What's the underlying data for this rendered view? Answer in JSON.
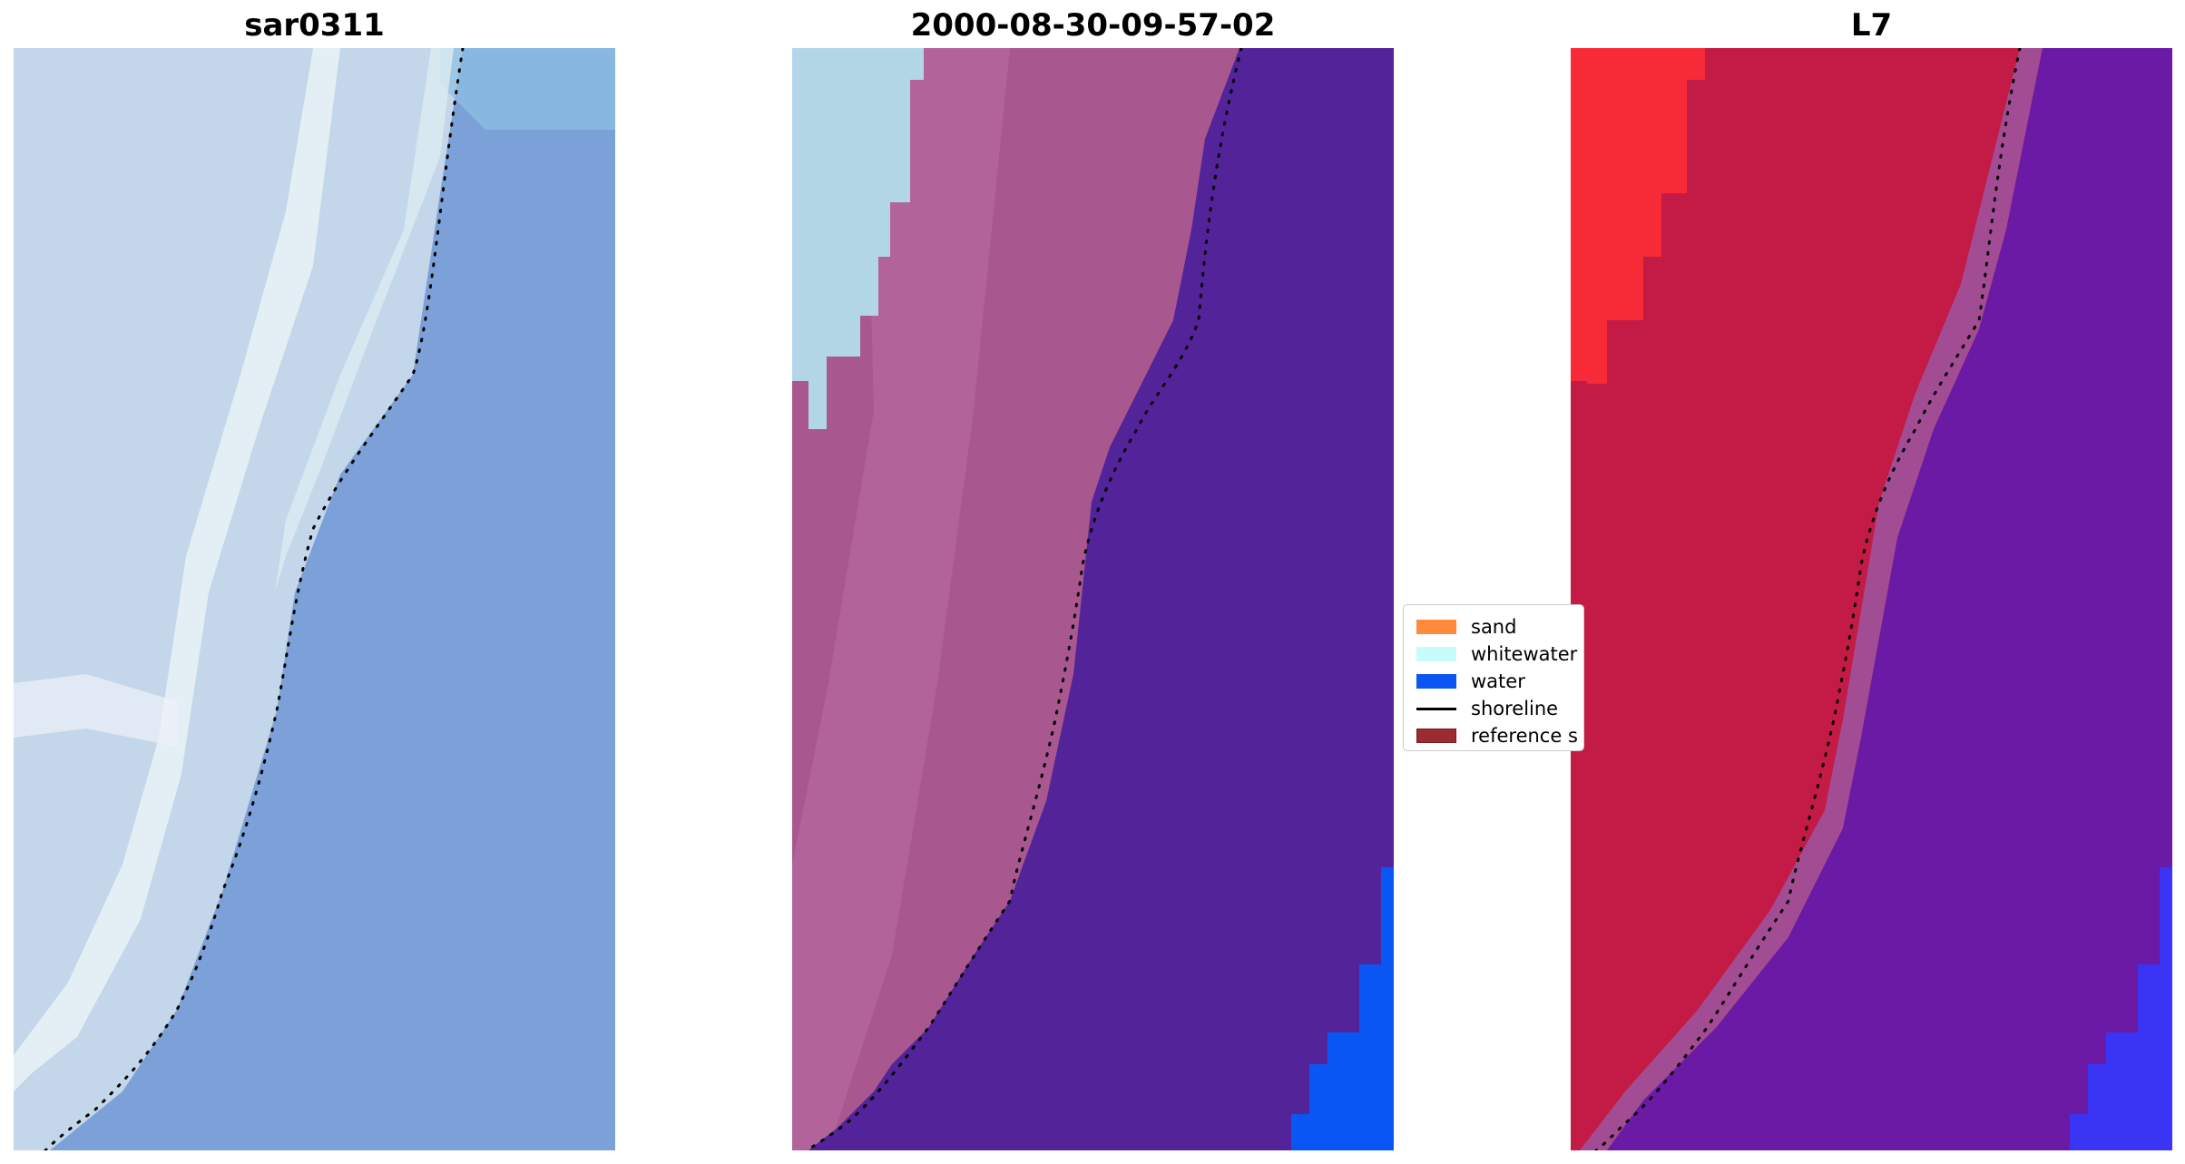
{
  "panels": [
    {
      "title": "sar0311"
    },
    {
      "title": "2000-08-30-09-57-02"
    },
    {
      "title": "L7"
    }
  ],
  "legend": {
    "items": [
      {
        "label": "sand",
        "kind": "patch",
        "color": "#ff8a3c"
      },
      {
        "label": "whitewater",
        "kind": "patch",
        "color": "#c8fbfb"
      },
      {
        "label": "water",
        "kind": "patch",
        "color": "#0a56f5"
      },
      {
        "label": "shoreline",
        "kind": "line",
        "color": "#000000"
      },
      {
        "label": "reference s",
        "kind": "patch",
        "color": "#9a2b30"
      }
    ]
  },
  "colors": {
    "sar_land": "#c3d6ea",
    "sar_water": "#7ba1d8",
    "sar_surf": "#e9f3f7",
    "class_land": "#a9578f",
    "class_land_light": "#b96aa2",
    "class_water": "#53239a",
    "class_whitewater": "#b3d6e7",
    "class_bluewater": "#0a56f5",
    "l7_land": "#c41a46",
    "l7_red": "#f72b37",
    "l7_water": "#6a1aa4",
    "l7_transition": "#a24c93",
    "l7_blue": "#3a34f5"
  }
}
